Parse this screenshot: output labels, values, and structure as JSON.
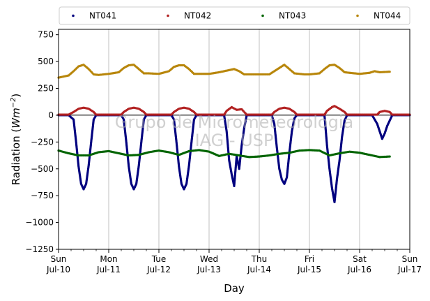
{
  "chart_data": {
    "type": "scatter",
    "ylabel_prefix": "Radiation (",
    "ylabel_unit_base": "Wm",
    "ylabel_unit_exp": "−2",
    "ylabel_suffix": ")",
    "xlabel": "Day",
    "ylim": [
      -1250,
      800
    ],
    "yticks": [
      750,
      500,
      250,
      0,
      -250,
      -500,
      -750,
      -1000,
      -1250
    ],
    "ytick_labels": [
      "750",
      "500",
      "250",
      "0",
      "−250",
      "−500",
      "−750",
      "−1000",
      "−1250"
    ],
    "xlim_days": [
      0,
      7
    ],
    "xticks": [
      {
        "day": 0,
        "line1": "Sun",
        "line2": "Jul-10"
      },
      {
        "day": 1,
        "line1": "Mon",
        "line2": "Jul-11"
      },
      {
        "day": 2,
        "line1": "Tue",
        "line2": "Jul-12"
      },
      {
        "day": 3,
        "line1": "Wed",
        "line2": "Jul-13"
      },
      {
        "day": 4,
        "line1": "Thu",
        "line2": "Jul-14"
      },
      {
        "day": 5,
        "line1": "Fri",
        "line2": "Jul-15"
      },
      {
        "day": 6,
        "line1": "Sat",
        "line2": "Jul-16"
      },
      {
        "day": 7,
        "line1": "Sun",
        "line2": "Jul-17"
      }
    ],
    "grid": "vertical",
    "legend_position": "top",
    "watermark_line1": "Grupo de Micrometeorologia",
    "watermark_line2": "IAG - USP",
    "series": [
      {
        "name": "NT041",
        "color": "#00007f",
        "points": [
          [
            0.0,
            0
          ],
          [
            0.2,
            0
          ],
          [
            0.3,
            -40
          ],
          [
            0.35,
            -250
          ],
          [
            0.4,
            -480
          ],
          [
            0.45,
            -640
          ],
          [
            0.5,
            -690
          ],
          [
            0.55,
            -640
          ],
          [
            0.6,
            -470
          ],
          [
            0.65,
            -250
          ],
          [
            0.7,
            -40
          ],
          [
            0.75,
            0
          ],
          [
            1.0,
            0
          ],
          [
            1.25,
            0
          ],
          [
            1.3,
            -40
          ],
          [
            1.35,
            -250
          ],
          [
            1.4,
            -480
          ],
          [
            1.45,
            -640
          ],
          [
            1.5,
            -690
          ],
          [
            1.55,
            -640
          ],
          [
            1.6,
            -470
          ],
          [
            1.65,
            -250
          ],
          [
            1.7,
            -40
          ],
          [
            1.75,
            0
          ],
          [
            2.0,
            0
          ],
          [
            2.25,
            0
          ],
          [
            2.3,
            -40
          ],
          [
            2.35,
            -250
          ],
          [
            2.4,
            -480
          ],
          [
            2.45,
            -640
          ],
          [
            2.5,
            -690
          ],
          [
            2.55,
            -640
          ],
          [
            2.6,
            -470
          ],
          [
            2.65,
            -250
          ],
          [
            2.7,
            -40
          ],
          [
            2.75,
            0
          ],
          [
            3.0,
            0
          ],
          [
            3.3,
            0
          ],
          [
            3.35,
            -150
          ],
          [
            3.4,
            -420
          ],
          [
            3.45,
            -550
          ],
          [
            3.5,
            -660
          ],
          [
            3.55,
            -380
          ],
          [
            3.6,
            -500
          ],
          [
            3.65,
            -280
          ],
          [
            3.7,
            -120
          ],
          [
            3.75,
            0
          ],
          [
            4.0,
            0
          ],
          [
            4.25,
            0
          ],
          [
            4.3,
            -80
          ],
          [
            4.35,
            -300
          ],
          [
            4.4,
            -500
          ],
          [
            4.45,
            -600
          ],
          [
            4.5,
            -640
          ],
          [
            4.55,
            -580
          ],
          [
            4.6,
            -350
          ],
          [
            4.65,
            -150
          ],
          [
            4.7,
            -30
          ],
          [
            4.75,
            0
          ],
          [
            5.0,
            0
          ],
          [
            5.3,
            0
          ],
          [
            5.35,
            -280
          ],
          [
            5.4,
            -500
          ],
          [
            5.45,
            -680
          ],
          [
            5.5,
            -810
          ],
          [
            5.55,
            -590
          ],
          [
            5.6,
            -420
          ],
          [
            5.65,
            -200
          ],
          [
            5.7,
            -50
          ],
          [
            5.75,
            0
          ],
          [
            6.0,
            0
          ],
          [
            6.25,
            0
          ],
          [
            6.35,
            -80
          ],
          [
            6.4,
            -150
          ],
          [
            6.45,
            -220
          ],
          [
            6.5,
            -170
          ],
          [
            6.55,
            -100
          ],
          [
            6.6,
            -50
          ],
          [
            6.65,
            0
          ],
          [
            7.0,
            0
          ]
        ]
      },
      {
        "name": "NT042",
        "color": "#b22222",
        "points": [
          [
            0.0,
            5
          ],
          [
            0.2,
            5
          ],
          [
            0.3,
            30
          ],
          [
            0.4,
            60
          ],
          [
            0.5,
            70
          ],
          [
            0.6,
            60
          ],
          [
            0.7,
            30
          ],
          [
            0.75,
            5
          ],
          [
            1.0,
            5
          ],
          [
            1.25,
            5
          ],
          [
            1.3,
            30
          ],
          [
            1.4,
            60
          ],
          [
            1.5,
            70
          ],
          [
            1.6,
            60
          ],
          [
            1.7,
            30
          ],
          [
            1.75,
            5
          ],
          [
            2.0,
            5
          ],
          [
            2.25,
            5
          ],
          [
            2.3,
            30
          ],
          [
            2.4,
            60
          ],
          [
            2.5,
            70
          ],
          [
            2.6,
            60
          ],
          [
            2.7,
            30
          ],
          [
            2.75,
            5
          ],
          [
            3.0,
            5
          ],
          [
            3.3,
            5
          ],
          [
            3.35,
            40
          ],
          [
            3.45,
            75
          ],
          [
            3.55,
            50
          ],
          [
            3.65,
            55
          ],
          [
            3.75,
            5
          ],
          [
            4.0,
            5
          ],
          [
            4.25,
            5
          ],
          [
            4.3,
            30
          ],
          [
            4.4,
            60
          ],
          [
            4.5,
            70
          ],
          [
            4.6,
            60
          ],
          [
            4.7,
            30
          ],
          [
            4.75,
            5
          ],
          [
            5.0,
            5
          ],
          [
            5.3,
            5
          ],
          [
            5.35,
            40
          ],
          [
            5.45,
            75
          ],
          [
            5.5,
            85
          ],
          [
            5.6,
            60
          ],
          [
            5.7,
            30
          ],
          [
            5.75,
            5
          ],
          [
            6.0,
            5
          ],
          [
            6.35,
            5
          ],
          [
            6.4,
            30
          ],
          [
            6.5,
            40
          ],
          [
            6.6,
            30
          ],
          [
            6.65,
            5
          ],
          [
            7.0,
            5
          ]
        ]
      },
      {
        "name": "NT043",
        "color": "#006400",
        "points": [
          [
            0.0,
            -330
          ],
          [
            0.2,
            -355
          ],
          [
            0.4,
            -375
          ],
          [
            0.6,
            -375
          ],
          [
            0.8,
            -345
          ],
          [
            1.0,
            -335
          ],
          [
            1.2,
            -355
          ],
          [
            1.4,
            -375
          ],
          [
            1.6,
            -370
          ],
          [
            1.8,
            -345
          ],
          [
            2.0,
            -330
          ],
          [
            2.2,
            -345
          ],
          [
            2.4,
            -370
          ],
          [
            2.6,
            -335
          ],
          [
            2.8,
            -325
          ],
          [
            3.0,
            -340
          ],
          [
            3.2,
            -380
          ],
          [
            3.4,
            -360
          ],
          [
            3.6,
            -375
          ],
          [
            3.8,
            -390
          ],
          [
            4.0,
            -385
          ],
          [
            4.2,
            -375
          ],
          [
            4.4,
            -360
          ],
          [
            4.6,
            -350
          ],
          [
            4.8,
            -330
          ],
          [
            5.0,
            -325
          ],
          [
            5.2,
            -330
          ],
          [
            5.4,
            -375
          ],
          [
            5.6,
            -355
          ],
          [
            5.8,
            -340
          ],
          [
            6.0,
            -350
          ],
          [
            6.2,
            -370
          ],
          [
            6.4,
            -390
          ],
          [
            6.6,
            -385
          ]
        ]
      },
      {
        "name": "NT044",
        "color": "#b8860b",
        "points": [
          [
            0.0,
            350
          ],
          [
            0.2,
            370
          ],
          [
            0.3,
            410
          ],
          [
            0.4,
            455
          ],
          [
            0.5,
            470
          ],
          [
            0.6,
            430
          ],
          [
            0.7,
            380
          ],
          [
            0.8,
            375
          ],
          [
            1.0,
            385
          ],
          [
            1.2,
            400
          ],
          [
            1.3,
            440
          ],
          [
            1.4,
            465
          ],
          [
            1.5,
            470
          ],
          [
            1.6,
            430
          ],
          [
            1.7,
            390
          ],
          [
            1.8,
            390
          ],
          [
            2.0,
            385
          ],
          [
            2.2,
            410
          ],
          [
            2.3,
            450
          ],
          [
            2.4,
            465
          ],
          [
            2.5,
            465
          ],
          [
            2.6,
            430
          ],
          [
            2.7,
            385
          ],
          [
            2.9,
            385
          ],
          [
            3.0,
            385
          ],
          [
            3.2,
            400
          ],
          [
            3.4,
            420
          ],
          [
            3.5,
            430
          ],
          [
            3.6,
            410
          ],
          [
            3.7,
            380
          ],
          [
            3.9,
            380
          ],
          [
            4.0,
            380
          ],
          [
            4.2,
            380
          ],
          [
            4.3,
            410
          ],
          [
            4.4,
            440
          ],
          [
            4.5,
            470
          ],
          [
            4.6,
            430
          ],
          [
            4.7,
            390
          ],
          [
            4.9,
            380
          ],
          [
            5.0,
            380
          ],
          [
            5.2,
            390
          ],
          [
            5.3,
            430
          ],
          [
            5.4,
            465
          ],
          [
            5.5,
            470
          ],
          [
            5.6,
            440
          ],
          [
            5.7,
            400
          ],
          [
            5.9,
            390
          ],
          [
            6.0,
            385
          ],
          [
            6.2,
            395
          ],
          [
            6.3,
            410
          ],
          [
            6.4,
            400
          ],
          [
            6.6,
            405
          ]
        ]
      }
    ]
  }
}
